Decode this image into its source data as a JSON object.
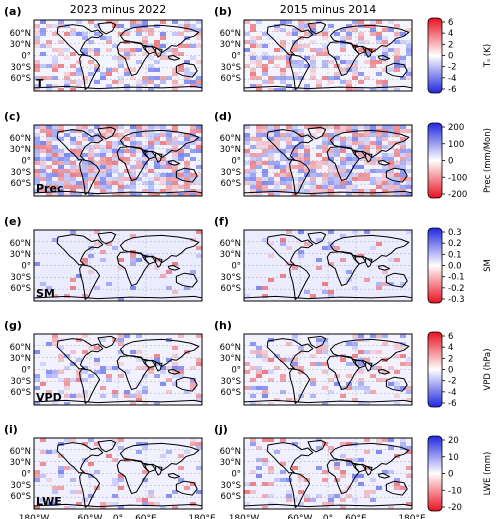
{
  "column_titles": [
    "2023 minus 2022",
    "2015 minus 2014"
  ],
  "lat_ticks": [
    "60°N",
    "30°N",
    "0°",
    "30°S",
    "60°S"
  ],
  "lon_ticks": [
    "180°W",
    "60°W",
    "0°",
    "60°E",
    "180°E"
  ],
  "panels": [
    {
      "letter": "(a)",
      "var": "T",
      "row": 0,
      "col": 0
    },
    {
      "letter": "(b)",
      "var": "",
      "row": 0,
      "col": 1
    },
    {
      "letter": "(c)",
      "var": "Prec",
      "row": 1,
      "col": 0
    },
    {
      "letter": "(d)",
      "var": "",
      "row": 1,
      "col": 1
    },
    {
      "letter": "(e)",
      "var": "SM",
      "row": 2,
      "col": 0
    },
    {
      "letter": "(f)",
      "var": "",
      "row": 2,
      "col": 1
    },
    {
      "letter": "(g)",
      "var": "VPD",
      "row": 3,
      "col": 0
    },
    {
      "letter": "(h)",
      "var": "",
      "row": 3,
      "col": 1
    },
    {
      "letter": "(i)",
      "var": "LWE",
      "row": 4,
      "col": 0
    },
    {
      "letter": "(j)",
      "var": "",
      "row": 4,
      "col": 1
    }
  ],
  "colorbars": [
    {
      "label": "Tₛ (K)",
      "ticks": [
        "6",
        "4",
        "2",
        "0",
        "-2",
        "-4",
        "-6"
      ],
      "min": -6,
      "max": 6,
      "top_color": "#e8111f",
      "bottom_color": "#2027e0"
    },
    {
      "label": "Prec (mm/Mon)",
      "ticks": [
        "200",
        "100",
        "0",
        "-100",
        "-200"
      ],
      "min": -200,
      "max": 200,
      "top_color": "#2027e0",
      "bottom_color": "#e8111f"
    },
    {
      "label": "SM",
      "ticks": [
        "0.3",
        "0.2",
        "0.1",
        "0.0",
        "-0.1",
        "-0.2",
        "-0.3"
      ],
      "min": -0.3,
      "max": 0.3,
      "top_color": "#2027e0",
      "bottom_color": "#e8111f"
    },
    {
      "label": "VPD (hPa)",
      "ticks": [
        "6",
        "4",
        "2",
        "0",
        "-2",
        "-4",
        "-6"
      ],
      "min": -6,
      "max": 6,
      "top_color": "#e8111f",
      "bottom_color": "#2027e0"
    },
    {
      "label": "LWE (mm)",
      "ticks": [
        "20",
        "10",
        "0",
        "-10",
        "-20"
      ],
      "min": -20,
      "max": 20,
      "top_color": "#2027e0",
      "bottom_color": "#e8111f"
    }
  ]
}
